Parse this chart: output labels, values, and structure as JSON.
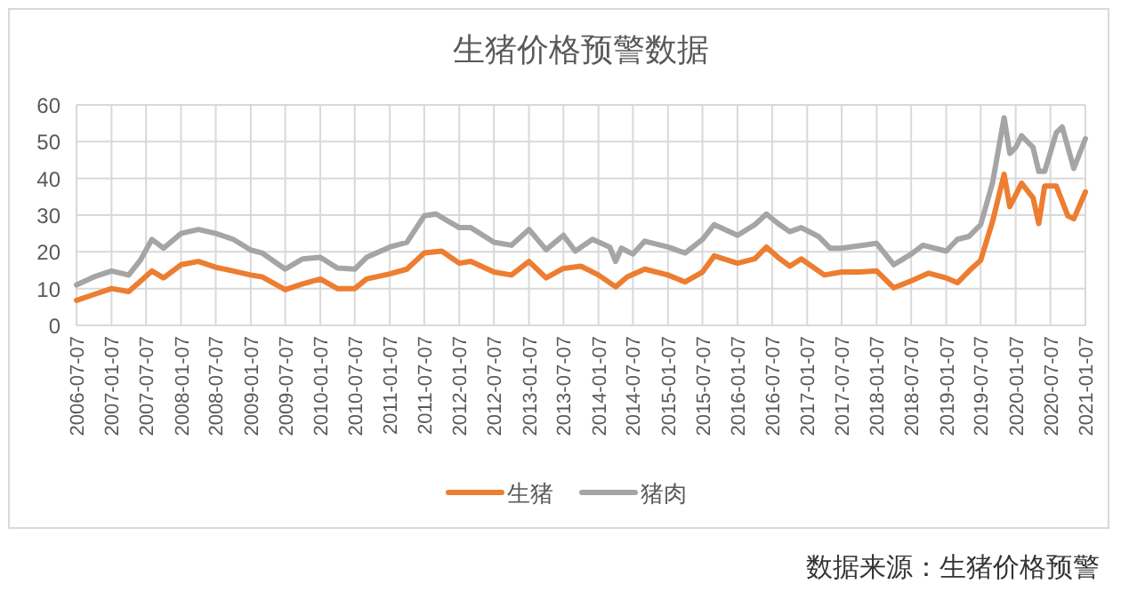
{
  "chart_data": {
    "type": "line",
    "title": "生猪价格预警数据",
    "xlim": [
      "2006-07-07",
      "2021-01-07"
    ],
    "xticks": [
      "2006-07-07",
      "2007-01-07",
      "2007-07-07",
      "2008-01-07",
      "2008-07-07",
      "2009-01-07",
      "2009-07-07",
      "2010-01-07",
      "2010-07-07",
      "2011-01-07",
      "2011-07-07",
      "2012-01-07",
      "2012-07-07",
      "2013-01-07",
      "2013-07-07",
      "2014-01-07",
      "2014-07-07",
      "2015-01-07",
      "2015-07-07",
      "2016-01-07",
      "2016-07-07",
      "2017-01-07",
      "2017-07-07",
      "2018-01-07",
      "2018-07-07",
      "2019-01-07",
      "2019-07-07",
      "2020-01-07",
      "2020-07-07",
      "2021-01-07"
    ],
    "ylim": [
      0,
      60
    ],
    "yticks": [
      0,
      10,
      20,
      30,
      40,
      50,
      60
    ],
    "grid": true,
    "legend": "bottom",
    "line_style": "solid",
    "marker": "none",
    "series": [
      {
        "name": "生猪",
        "color": "#ed7d31",
        "x": [
          "2006-07-07",
          "2006-10-07",
          "2007-01-07",
          "2007-04-07",
          "2007-06-07",
          "2007-08-07",
          "2007-10-07",
          "2008-01-07",
          "2008-04-07",
          "2008-07-07",
          "2008-10-07",
          "2009-01-07",
          "2009-03-07",
          "2009-07-07",
          "2009-10-07",
          "2010-01-07",
          "2010-04-07",
          "2010-07-07",
          "2010-09-07",
          "2011-01-07",
          "2011-04-07",
          "2011-07-07",
          "2011-10-07",
          "2012-01-07",
          "2012-03-07",
          "2012-07-07",
          "2012-10-07",
          "2013-01-07",
          "2013-04-07",
          "2013-07-07",
          "2013-10-07",
          "2014-01-07",
          "2014-04-07",
          "2014-06-07",
          "2014-09-07",
          "2015-01-07",
          "2015-04-07",
          "2015-07-07",
          "2015-09-07",
          "2016-01-07",
          "2016-04-07",
          "2016-06-07",
          "2016-08-07",
          "2016-10-07",
          "2016-12-07",
          "2017-04-07",
          "2017-07-07",
          "2017-10-07",
          "2018-01-07",
          "2018-04-07",
          "2018-07-07",
          "2018-10-07",
          "2019-01-07",
          "2019-03-07",
          "2019-05-07",
          "2019-07-07",
          "2019-09-07",
          "2019-11-07",
          "2019-12-07",
          "2020-02-07",
          "2020-04-07",
          "2020-05-07",
          "2020-06-07",
          "2020-08-07",
          "2020-10-07",
          "2020-11-07",
          "2021-01-07"
        ],
        "values": [
          6.8,
          8.4,
          10.0,
          9.2,
          12,
          14.8,
          12.9,
          16.5,
          17.4,
          15.8,
          14.8,
          13.7,
          13.2,
          9.7,
          11.3,
          12.6,
          10,
          10,
          12.6,
          14,
          15.3,
          19.7,
          20.2,
          16.9,
          17.4,
          14.5,
          13.7,
          17.4,
          12.9,
          15.5,
          16.1,
          13.7,
          10.5,
          13.2,
          15.3,
          13.7,
          11.8,
          14.5,
          18.9,
          16.9,
          18.1,
          21.3,
          18.5,
          16.1,
          18.1,
          13.7,
          14.5,
          14.5,
          14.8,
          10.2,
          12.1,
          14.2,
          12.9,
          11.6,
          14.8,
          17.7,
          28.2,
          41.1,
          32.3,
          38.7,
          34.7,
          27.7,
          37.9,
          37.9,
          29.8,
          29,
          36.3
        ]
      },
      {
        "name": "猪肉",
        "color": "#a5a5a5",
        "x": [
          "2006-07-07",
          "2006-10-07",
          "2007-01-07",
          "2007-04-07",
          "2007-06-07",
          "2007-08-07",
          "2007-10-07",
          "2008-01-07",
          "2008-04-07",
          "2008-07-07",
          "2008-10-07",
          "2009-01-07",
          "2009-03-07",
          "2009-07-07",
          "2009-10-07",
          "2010-01-07",
          "2010-04-07",
          "2010-07-07",
          "2010-09-07",
          "2011-01-07",
          "2011-04-07",
          "2011-07-07",
          "2011-09-07",
          "2012-01-07",
          "2012-03-07",
          "2012-07-07",
          "2012-10-07",
          "2013-01-07",
          "2013-04-07",
          "2013-07-07",
          "2013-09-07",
          "2013-12-07",
          "2014-03-07",
          "2014-04-07",
          "2014-05-07",
          "2014-07-07",
          "2014-09-07",
          "2015-01-07",
          "2015-04-07",
          "2015-07-07",
          "2015-09-07",
          "2016-01-07",
          "2016-04-07",
          "2016-06-07",
          "2016-08-07",
          "2016-10-07",
          "2016-12-07",
          "2017-03-07",
          "2017-05-07",
          "2017-07-07",
          "2018-01-07",
          "2018-04-07",
          "2018-07-07",
          "2018-09-07",
          "2019-01-07",
          "2019-03-07",
          "2019-05-07",
          "2019-07-07",
          "2019-09-07",
          "2019-11-07",
          "2019-12-07",
          "2020-01-07",
          "2020-02-07",
          "2020-04-07",
          "2020-05-07",
          "2020-06-07",
          "2020-08-07",
          "2020-09-07",
          "2020-11-07",
          "2021-01-07"
        ],
        "values": [
          11,
          13.2,
          14.8,
          13.7,
          17.7,
          23.4,
          21,
          25,
          26.1,
          25,
          23.4,
          20.5,
          19.7,
          15.3,
          18.1,
          18.5,
          15.6,
          15.3,
          18.5,
          21.3,
          22.6,
          29.8,
          30.3,
          26.6,
          26.6,
          22.6,
          21.8,
          26.1,
          20.6,
          24.5,
          20.2,
          23.4,
          21.3,
          17.4,
          21,
          19.4,
          22.9,
          21.3,
          19.7,
          23.4,
          27.4,
          24.5,
          27.4,
          30.3,
          27.7,
          25.5,
          26.6,
          24.2,
          21,
          21,
          22.3,
          16.5,
          19.4,
          21.8,
          20.2,
          23.4,
          24.2,
          27.4,
          38.7,
          56.5,
          46.8,
          48.4,
          51.6,
          48.4,
          41.9,
          41.9,
          52.4,
          54,
          42.7,
          50.8
        ]
      }
    ],
    "annotations": [
      "数据来源：生猪价格预警"
    ]
  }
}
